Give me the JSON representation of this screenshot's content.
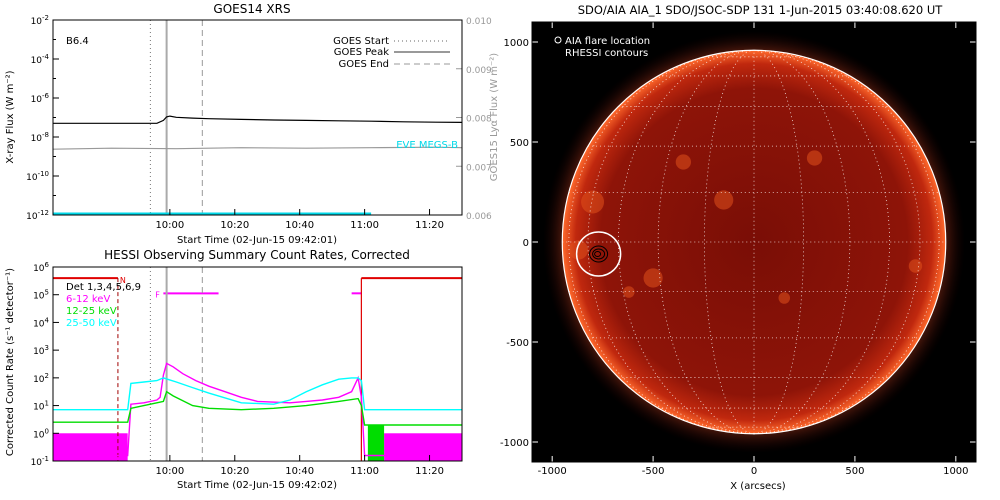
{
  "chart_data": [
    {
      "type": "line",
      "title": "GOES14 XRS",
      "xlabel": "Start Time (02-Jun-15 09:42:01)",
      "ylabel": "X-ray Flux (W m⁻²)",
      "y2label": "GOES15 Lyα Flux (W m⁻²)",
      "class_label": "B6.4",
      "y_log": true,
      "ylim_exp": [
        -12,
        -2
      ],
      "y_ticks_exp": [
        -12,
        -10,
        -8,
        -6,
        -4,
        -2
      ],
      "y2lim": [
        0.006,
        0.01
      ],
      "y2_ticks": [
        "0.006",
        "0.007",
        "0.008",
        "0.009",
        "0.010"
      ],
      "xlim_min": [
        -18,
        108
      ],
      "x_ticks": [
        {
          "t": 18,
          "label": "10:00"
        },
        {
          "t": 38,
          "label": "10:20"
        },
        {
          "t": 58,
          "label": "10:40"
        },
        {
          "t": 78,
          "label": "11:00"
        },
        {
          "t": 98,
          "label": "11:20"
        }
      ],
      "legend": [
        "GOES Start",
        "GOES Peak",
        "GOES End"
      ],
      "markers": {
        "start": 12,
        "peak": 17,
        "end": 28
      },
      "series_label": "EVE MEGS-B",
      "series_label_color": "#00d8e8",
      "series": [
        {
          "name": "GOES XRS long",
          "color": "#000000",
          "axis": "left",
          "x": [
            -18,
            10,
            14,
            16,
            17,
            18,
            20,
            25,
            30,
            40,
            50,
            60,
            70,
            80,
            90,
            100,
            108
          ],
          "y_exp": [
            -7.3,
            -7.3,
            -7.3,
            -7.15,
            -6.97,
            -6.93,
            -6.99,
            -7.03,
            -7.06,
            -7.1,
            -7.13,
            -7.15,
            -7.17,
            -7.19,
            -7.22,
            -7.24,
            -7.25
          ]
        },
        {
          "name": "GOES15 Lyα",
          "color": "#999999",
          "axis": "right",
          "x": [
            -18,
            0,
            20,
            40,
            60,
            80,
            100,
            108
          ],
          "y": [
            0.00735,
            0.00737,
            0.00736,
            0.00738,
            0.00737,
            0.00738,
            0.00739,
            0.00738
          ]
        },
        {
          "name": "XRS short",
          "color": "#00d8e8",
          "axis": "left",
          "x": [
            -18,
            80
          ],
          "y_exp": [
            -11.95,
            -11.95
          ]
        }
      ]
    },
    {
      "type": "line",
      "title": "HESSI Observing Summary Count Rates, Corrected",
      "xlabel": "Start Time (02-Jun-15 09:42:02)",
      "ylabel": "Corrected Count Rate (s⁻¹ detector⁻¹)",
      "y_log": true,
      "ylim_exp": [
        -1,
        6
      ],
      "y_ticks_exp": [
        -1,
        0,
        1,
        2,
        3,
        4,
        5,
        6
      ],
      "xlim_min": [
        -18,
        108
      ],
      "x_ticks": [
        {
          "t": 18,
          "label": "10:00"
        },
        {
          "t": 38,
          "label": "10:20"
        },
        {
          "t": 58,
          "label": "10:40"
        },
        {
          "t": 78,
          "label": "11:00"
        },
        {
          "t": 98,
          "label": "11:20"
        }
      ],
      "detectors": "Det 1,3,4,5,6,9",
      "markers": {
        "start": 12,
        "peak": 17,
        "end": 28,
        "night": 2,
        "saa_end": 77
      },
      "flag_labels": {
        "night": "N",
        "flare": "F"
      },
      "series": [
        {
          "name": "6-12 keV",
          "color": "#ff00ff",
          "x": [
            -18,
            5,
            6,
            10,
            14,
            15,
            16,
            17,
            19,
            22,
            26,
            30,
            35,
            40,
            45,
            55,
            60,
            65,
            70,
            74,
            76,
            77,
            78,
            84,
            108
          ],
          "y_exp": [
            -0.8,
            -0.8,
            1.05,
            1.1,
            1.2,
            1.3,
            2.1,
            2.52,
            2.4,
            2.15,
            1.9,
            1.7,
            1.5,
            1.3,
            1.15,
            1.1,
            1.15,
            1.2,
            1.3,
            1.5,
            2.0,
            1.3,
            -0.8,
            -0.8,
            -0.8
          ]
        },
        {
          "name": "12-25 keV",
          "color": "#00dd00",
          "x": [
            -18,
            5,
            6,
            10,
            14,
            16,
            17,
            19,
            25,
            30,
            40,
            50,
            60,
            70,
            76,
            77,
            78,
            84,
            108
          ],
          "y_exp": [
            0.4,
            0.4,
            0.9,
            1.0,
            1.1,
            1.15,
            1.5,
            1.35,
            1.0,
            0.9,
            0.85,
            0.9,
            1.0,
            1.15,
            1.25,
            1.0,
            0.3,
            0.3,
            0.3
          ]
        },
        {
          "name": "25-50 keV",
          "color": "#00ffff",
          "x": [
            -18,
            5,
            6,
            10,
            14,
            16,
            20,
            25,
            30,
            40,
            50,
            55,
            60,
            65,
            70,
            74,
            76,
            77,
            78,
            84,
            108
          ],
          "y_exp": [
            0.85,
            0.85,
            1.8,
            1.85,
            1.9,
            2.0,
            1.85,
            1.65,
            1.45,
            1.1,
            1.05,
            1.2,
            1.5,
            1.75,
            1.95,
            2.0,
            2.0,
            1.9,
            0.85,
            0.85,
            0.85
          ]
        }
      ]
    },
    {
      "type": "scatter",
      "title": "SDO/AIA AIA_1 SDO/JSOC-SDP 131   1-Jun-2015 03:40:08.620 UT",
      "xlabel": "X (arcsecs)",
      "ylabel": "Y (arcsecs)",
      "xlim": [
        -1100,
        1100
      ],
      "ylim": [
        -1100,
        1100
      ],
      "x_ticks": [
        -1000,
        -500,
        0,
        500,
        1000
      ],
      "y_ticks": [
        -1000,
        -500,
        0,
        500,
        1000
      ],
      "legend": [
        "AIA flare location",
        "RHESSI contours"
      ],
      "solar_radius_arcsec": 950,
      "grid_spacing_deg": 15,
      "flare_location": {
        "x": -770,
        "y": -60
      },
      "colors": {
        "background": "#000000",
        "limb": "#ffffff",
        "disk": "#8a1208",
        "frame": "#ffffff"
      }
    }
  ]
}
